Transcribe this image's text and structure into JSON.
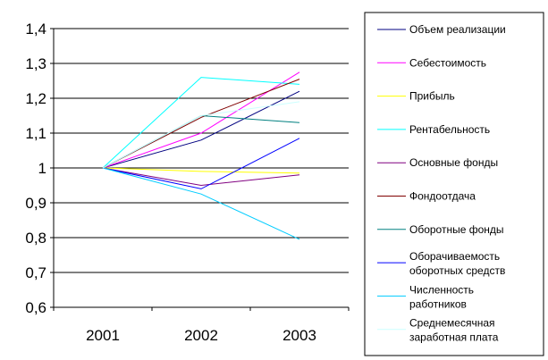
{
  "chart_data": {
    "type": "line",
    "title": "",
    "xlabel": "",
    "ylabel": "",
    "x": [
      "2001",
      "2002",
      "2003"
    ],
    "ylim": [
      0.6,
      1.4
    ],
    "yticks": [
      0.6,
      0.7,
      0.8,
      0.9,
      1.0,
      1.1,
      1.2,
      1.3,
      1.4
    ],
    "ytick_labels": [
      "0,6",
      "0,7",
      "0,8",
      "0,9",
      "1",
      "1,1",
      "1,2",
      "1,3",
      "1,4"
    ],
    "grid": "horizontal",
    "legend_position": "right",
    "series": [
      {
        "name": "Объем реализации",
        "color": "#000080",
        "values": [
          1.0,
          1.08,
          1.22
        ]
      },
      {
        "name": "Себестоимость",
        "color": "#FF00FF",
        "values": [
          1.0,
          1.1,
          1.275
        ]
      },
      {
        "name": "Прибыль",
        "color": "#FFFF00",
        "values": [
          1.0,
          0.99,
          0.985
        ]
      },
      {
        "name": "Рентабельность",
        "color": "#00FFFF",
        "values": [
          1.0,
          1.26,
          1.24
        ]
      },
      {
        "name": "Основные фонды",
        "color": "#800080",
        "values": [
          1.0,
          0.95,
          0.98
        ]
      },
      {
        "name": "Фондоотдача",
        "color": "#800000",
        "values": [
          1.0,
          1.145,
          1.255
        ]
      },
      {
        "name": "Оборотные фонды",
        "color": "#008080",
        "values": [
          1.0,
          1.15,
          1.13
        ]
      },
      {
        "name": [
          "Оборачиваемость",
          "оборотных средств"
        ],
        "color": "#0000FF",
        "values": [
          1.0,
          0.94,
          1.085
        ]
      },
      {
        "name": [
          "Численность",
          "работников"
        ],
        "color": "#00CCFF",
        "values": [
          1.0,
          0.925,
          0.795
        ]
      },
      {
        "name": [
          "Среднемесячная",
          "заработная плата"
        ],
        "color": "#CCFFFF",
        "values": [
          1.0,
          1.15,
          1.19
        ]
      }
    ]
  }
}
